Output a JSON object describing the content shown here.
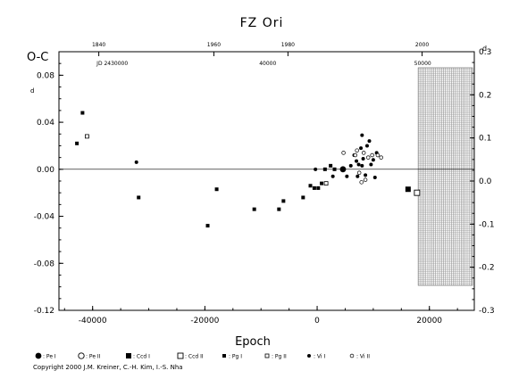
{
  "chart_data": {
    "type": "scatter",
    "title": "FZ Ori",
    "ylabel": "O-C",
    "xlabel": "Epoch",
    "xlim": [
      -46000,
      28000
    ],
    "ylim": [
      -0.12,
      0.1
    ],
    "right_ylim": [
      -0.3,
      0.3
    ],
    "x_ticks": [
      -40000,
      -20000,
      0,
      20000
    ],
    "x_tick_labels": [
      "-40000",
      "-20000",
      "0",
      "20000"
    ],
    "y_ticks": [
      -0.12,
      -0.08,
      -0.04,
      0.0,
      0.04,
      0.08
    ],
    "y_tick_labels": [
      "-0.12",
      "-0.08",
      "-0.04",
      "0.00",
      "0.04",
      "0.08"
    ],
    "right_y_ticks": [
      -0.3,
      -0.2,
      -0.1,
      0.0,
      0.1,
      0.2,
      0.3
    ],
    "right_y_tick_labels": [
      "-0.3",
      "-0.2",
      "-0.1",
      "0.0",
      "0.1",
      "0.2",
      "0.3"
    ],
    "right_unit": "d",
    "left_unit": "d",
    "top_year_axis": {
      "years": [
        1840,
        1960,
        1980,
        2000
      ],
      "epochs": [
        -38900,
        -18400,
        -5200,
        18700
      ]
    },
    "jd_axis": {
      "labels": [
        "JD 2430000",
        "40000",
        "50000"
      ],
      "epochs": [
        -36500,
        -8800,
        18800
      ]
    },
    "shaded_region_start": 18000,
    "grid": false,
    "legend_position": "bottom",
    "legend": [
      {
        "marker": "filled-circle-large",
        "label": ": Pe I"
      },
      {
        "marker": "open-circle-large",
        "label": ": Pe II"
      },
      {
        "marker": "filled-square-large",
        "label": ": Ccd I"
      },
      {
        "marker": "open-square-large",
        "label": ": Ccd II"
      },
      {
        "marker": "filled-square-small",
        "label": ": Pg I"
      },
      {
        "marker": "open-square-small",
        "label": ": Pg II"
      },
      {
        "marker": "filled-circle-small",
        "label": ": Vi I"
      },
      {
        "marker": "open-circle-small",
        "label": ": Vi II"
      }
    ],
    "series": [
      {
        "marker": "filled-square-small",
        "points": [
          [
            -41800,
            0.048
          ],
          [
            -42800,
            0.022
          ],
          [
            -31800,
            -0.024
          ],
          [
            -17900,
            -0.017
          ],
          [
            -19500,
            -0.048
          ],
          [
            -11200,
            -0.034
          ],
          [
            -6800,
            -0.034
          ],
          [
            -6000,
            -0.027
          ],
          [
            -2500,
            -0.024
          ],
          [
            -1200,
            -0.014
          ],
          [
            -500,
            -0.016
          ],
          [
            200,
            -0.016
          ],
          [
            800,
            -0.012
          ],
          [
            1400,
            0.0
          ],
          [
            2400,
            0.003
          ],
          [
            3100,
            0.0
          ]
        ]
      },
      {
        "marker": "open-square-small",
        "points": [
          [
            -41000,
            0.028
          ],
          [
            1600,
            -0.012
          ]
        ]
      },
      {
        "marker": "filled-circle-small",
        "points": [
          [
            -32200,
            0.006
          ],
          [
            -300,
            0.0
          ],
          [
            2800,
            -0.006
          ],
          [
            5300,
            -0.006
          ],
          [
            6000,
            0.003
          ],
          [
            6600,
            0.012
          ],
          [
            7000,
            0.007
          ],
          [
            7400,
            0.004
          ],
          [
            7800,
            0.018
          ],
          [
            8000,
            0.003
          ],
          [
            8200,
            0.009
          ],
          [
            8600,
            -0.005
          ],
          [
            8900,
            0.02
          ],
          [
            9300,
            0.024
          ],
          [
            9600,
            0.004
          ],
          [
            10000,
            0.008
          ],
          [
            10300,
            -0.007
          ],
          [
            10600,
            0.014
          ],
          [
            7200,
            -0.006
          ],
          [
            8000,
            0.029
          ]
        ]
      },
      {
        "marker": "open-circle-small",
        "points": [
          [
            4700,
            0.014
          ],
          [
            6800,
            0.012
          ],
          [
            7100,
            0.016
          ],
          [
            7500,
            -0.003
          ],
          [
            7900,
            -0.011
          ],
          [
            8300,
            0.014
          ],
          [
            8600,
            -0.009
          ],
          [
            9100,
            0.01
          ],
          [
            9800,
            0.012
          ],
          [
            10800,
            0.012
          ],
          [
            11400,
            0.01
          ]
        ]
      },
      {
        "marker": "filled-circle-large",
        "points": [
          [
            4600,
            0.0
          ]
        ]
      },
      {
        "marker": "filled-square-large",
        "points": [
          [
            16200,
            -0.017
          ]
        ]
      },
      {
        "marker": "open-square-large",
        "points": [
          [
            17800,
            -0.02
          ]
        ]
      }
    ]
  },
  "copyright": "Copyright 2000 J.M. Kreiner, C.-H. Kim, I.-S. Nha"
}
